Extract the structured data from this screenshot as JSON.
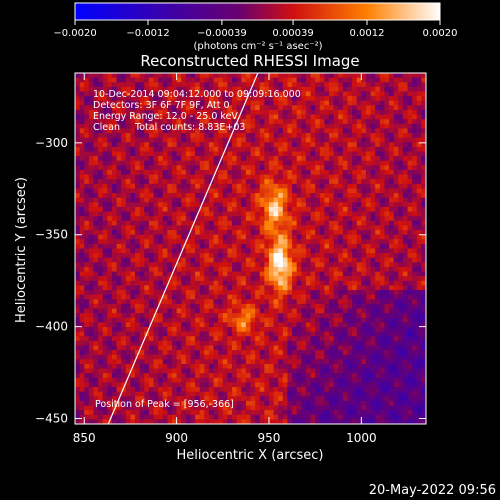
{
  "chart_data": {
    "type": "heatmap",
    "title": "Reconstructed RHESSI Image",
    "xlabel": "Heliocentric X (arcsec)",
    "ylabel": "Heliocentric Y (arcsec)",
    "xlim": [
      845,
      1035
    ],
    "ylim": [
      -453,
      -262
    ],
    "x_ticks": [
      850,
      900,
      950,
      1000
    ],
    "y_ticks": [
      -300,
      -350,
      -400,
      -450
    ],
    "x_tick_labels": [
      "850",
      "900",
      "950",
      "1000"
    ],
    "y_tick_labels": [
      "−300",
      "−350",
      "−400",
      "−450"
    ],
    "info_lines": [
      "10-Dec-2014 09:04:12.000 to 09:09:16.000",
      "Detectors: 3F 6F 7F 9F, Att 0",
      "Energy Range: 12.0 - 25.0 keV",
      "Clean     Total counts: 8.83E+03"
    ],
    "peak_label": "Position of Peak = [956,-366]",
    "peak": [
      956,
      -366
    ],
    "colorbar": {
      "min": -0.002,
      "max": 0.002,
      "tick_values": [
        -0.002,
        -0.0012,
        -0.00039,
        0.00039,
        0.0012,
        0.002
      ],
      "tick_labels": [
        "−0.0020",
        "−0.0012",
        "−0.00039",
        "0.00039",
        "0.0012",
        "0.0020"
      ],
      "units": "(photons cm⁻² s⁻¹ asec⁻²)",
      "colormap": [
        "#0000ff",
        "#3a00aa",
        "#6a0070",
        "#d01010",
        "#ff8000",
        "#ffffff"
      ]
    },
    "limb_line": {
      "color": "#ffffff",
      "points": [
        [
          863,
          -453
        ],
        [
          944,
          -262
        ]
      ]
    },
    "sources": [
      {
        "x": 956,
        "y": -366,
        "peak_value": 0.0018
      },
      {
        "x": 953,
        "y": -335,
        "peak_value": 0.0013
      },
      {
        "x": 936,
        "y": -396,
        "peak_value": 0.0009
      }
    ]
  },
  "footer": {
    "timestamp": "20-May-2022 09:56"
  }
}
